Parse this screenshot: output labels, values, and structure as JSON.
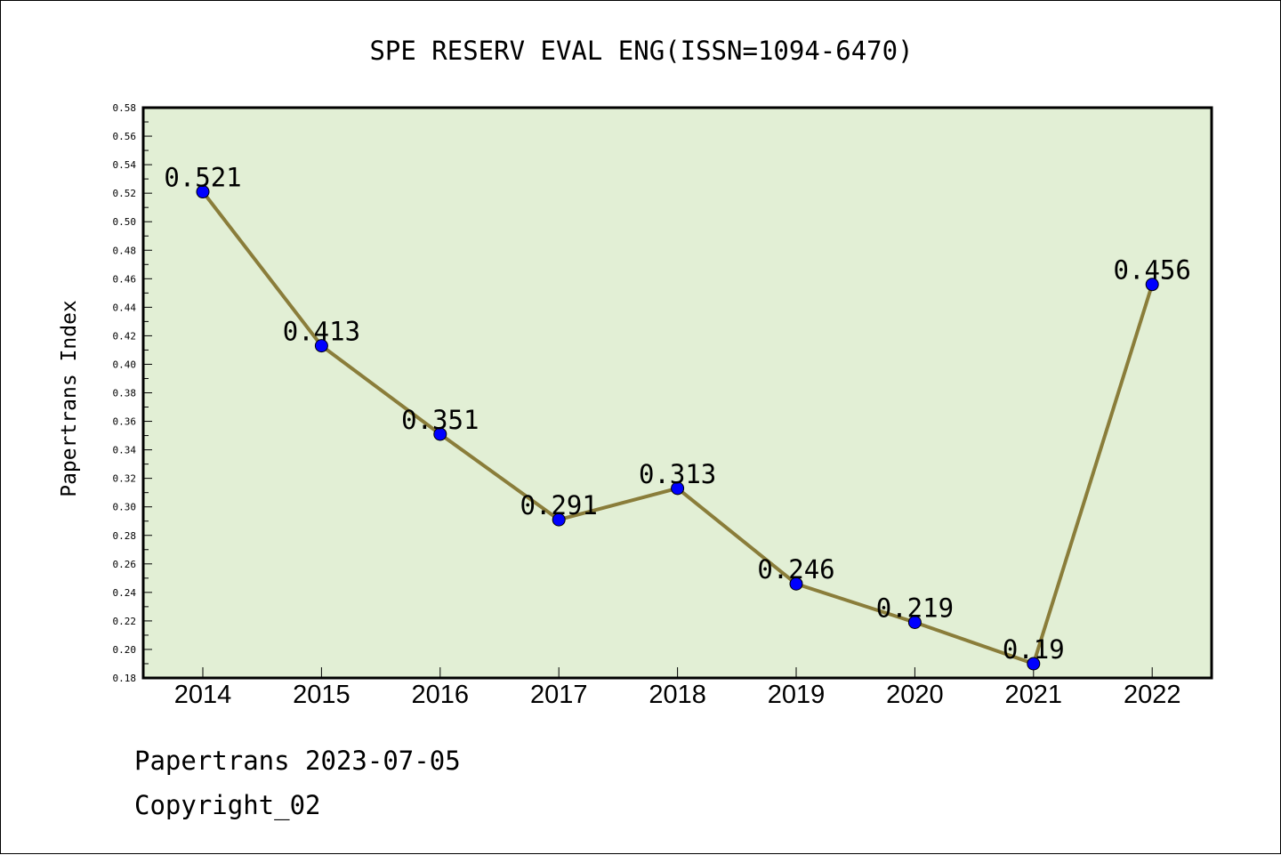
{
  "chart_data": {
    "type": "line",
    "title": "SPE RESERV EVAL ENG(ISSN=1094-6470)",
    "xlabel": "",
    "ylabel": "Papertrans Index",
    "categories": [
      "2014",
      "2015",
      "2016",
      "2017",
      "2018",
      "2019",
      "2020",
      "2021",
      "2022"
    ],
    "values": [
      0.521,
      0.413,
      0.351,
      0.291,
      0.313,
      0.246,
      0.219,
      0.19,
      0.456
    ],
    "data_labels": [
      "0.521",
      "0.413",
      "0.351",
      "0.291",
      "0.313",
      "0.246",
      "0.219",
      "0.19",
      "0.456"
    ],
    "ylim": [
      0.18,
      0.58
    ],
    "yticks": [
      "0.18",
      "0.20",
      "0.22",
      "0.24",
      "0.26",
      "0.28",
      "0.30",
      "0.32",
      "0.34",
      "0.36",
      "0.38",
      "0.40",
      "0.42",
      "0.44",
      "0.46",
      "0.48",
      "0.50",
      "0.52",
      "0.54",
      "0.56",
      "0.58"
    ],
    "grid": false,
    "legend": "none",
    "colors": {
      "plot_background": "#e2efd5",
      "line": "#8a7d3a",
      "marker": "#0000ff"
    }
  },
  "footer": {
    "line1": "Papertrans 2023-07-05",
    "line2": "Copyright_02"
  }
}
